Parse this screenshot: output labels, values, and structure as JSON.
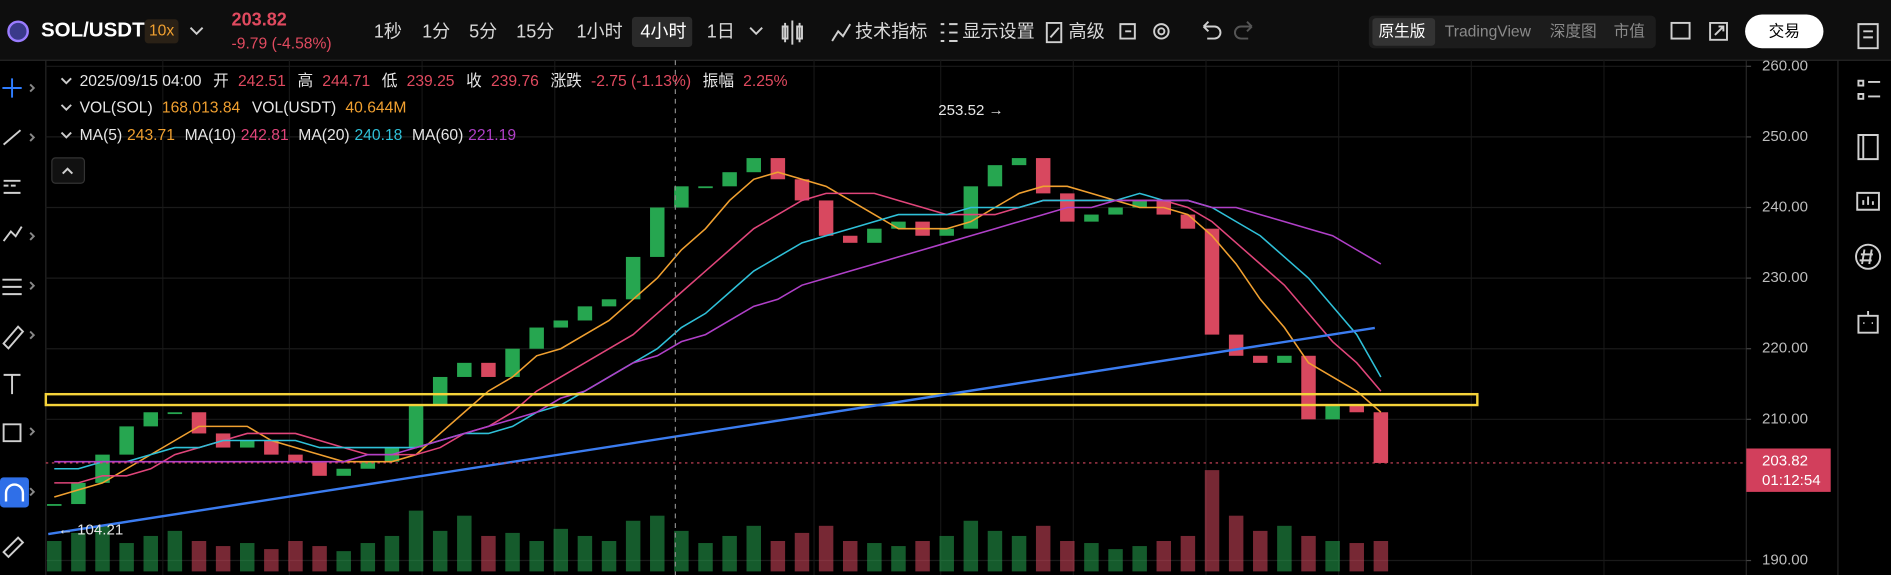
{
  "ticker": {
    "symbol": "SOL/USDT",
    "leverage": "10x",
    "price": "203.82",
    "change": "-9.79 (-4.58%)"
  },
  "intervals": [
    "1秒",
    "1分",
    "5分",
    "15分",
    "1小时",
    "4小时",
    "1日"
  ],
  "tools": {
    "indicators": "技术指标",
    "display": "显示设置",
    "advanced": "高级"
  },
  "views": [
    "原生版",
    "TradingView",
    "深度图",
    "市值"
  ],
  "trade_button": "交易",
  "info": {
    "datetime": "2025/09/15 04:00",
    "open_label": "开",
    "open": "242.51",
    "high_label": "高",
    "high": "244.71",
    "low_label": "低",
    "low": "239.25",
    "close_label": "收",
    "close": "239.76",
    "change_label": "涨跌",
    "change": "-2.75 (-1.13%)",
    "amplitude_label": "振幅",
    "amplitude": "2.25%",
    "vol_sol_label": "VOL(SOL)",
    "vol_sol": "168,013.84",
    "vol_usdt_label": "VOL(USDT)",
    "vol_usdt": "40.644M"
  },
  "chart_data": {
    "type": "candlestick",
    "values": [
      198,
      201,
      205,
      209,
      211,
      211,
      208,
      206,
      207,
      205,
      204,
      202,
      203,
      204,
      206,
      212,
      216,
      218,
      216,
      220,
      223,
      224,
      226,
      227,
      233,
      240,
      243,
      243,
      245,
      247,
      244,
      241,
      236,
      235,
      237,
      238,
      236,
      237,
      243,
      246,
      247,
      242,
      238,
      239,
      240,
      241,
      239,
      237,
      222,
      219,
      218,
      219,
      210,
      212,
      211,
      203.82
    ],
    "volumes": [
      30,
      38,
      45,
      28,
      35,
      40,
      30,
      25,
      28,
      22,
      30,
      25,
      20,
      28,
      35,
      60,
      40,
      55,
      35,
      38,
      30,
      42,
      35,
      30,
      50,
      55,
      40,
      28,
      35,
      45,
      30,
      38,
      45,
      30,
      28,
      25,
      30,
      35,
      50,
      40,
      35,
      45,
      30,
      28,
      22,
      25,
      30,
      35,
      100,
      55,
      40,
      45,
      35,
      30,
      28,
      30
    ],
    "up_color": "#26a650",
    "down_color": "#d8485f",
    "series": [
      {
        "name": "MA(5)",
        "legend_value": 243.71,
        "color": "#f0a030",
        "values": [
          199,
          200,
          201,
          203,
          205,
          207,
          209,
          209,
          209,
          207,
          206,
          205,
          204,
          204,
          204,
          205,
          208,
          211,
          214,
          216,
          219,
          220,
          222,
          224,
          227,
          230,
          234,
          237,
          241,
          244,
          245,
          244,
          243,
          241,
          239,
          237,
          237,
          237,
          238,
          240,
          242,
          243,
          243,
          242,
          241,
          240,
          240,
          239,
          236,
          232,
          227,
          223,
          218,
          216,
          214,
          211
        ]
      },
      {
        "name": "MA(10)",
        "legend_value": 242.81,
        "color": "#e0457a",
        "values": [
          201,
          201,
          202,
          202,
          203,
          205,
          206,
          207,
          208,
          208,
          208,
          207,
          206,
          205,
          205,
          205,
          206,
          208,
          209,
          211,
          214,
          216,
          218,
          220,
          222,
          225,
          228,
          231,
          234,
          237,
          239,
          241,
          242,
          242,
          242,
          241,
          240,
          239,
          239,
          239,
          240,
          241,
          241,
          241,
          241,
          241,
          241,
          240,
          238,
          235,
          232,
          229,
          225,
          221,
          218,
          214
        ]
      },
      {
        "name": "MA(20)",
        "legend_value": 240.18,
        "color": "#2fc0d8",
        "values": [
          203,
          203,
          204,
          204,
          205,
          206,
          206,
          207,
          207,
          207,
          207,
          206,
          206,
          206,
          206,
          206,
          207,
          208,
          208,
          209,
          211,
          212,
          214,
          216,
          218,
          220,
          223,
          225,
          228,
          231,
          233,
          235,
          236,
          237,
          238,
          239,
          239,
          239,
          240,
          240,
          240,
          241,
          241,
          241,
          241,
          242,
          241,
          241,
          240,
          238,
          236,
          233,
          230,
          226,
          222,
          216
        ]
      },
      {
        "name": "MA(60)",
        "legend_value": 221.19,
        "color": "#b040c8",
        "values": [
          204,
          204,
          204,
          204,
          204,
          204,
          204,
          204,
          204,
          204,
          204,
          204,
          204,
          205,
          205,
          206,
          207,
          208,
          209,
          210,
          211,
          213,
          214,
          216,
          218,
          219,
          221,
          222,
          224,
          226,
          227,
          229,
          230,
          231,
          232,
          233,
          234,
          235,
          236,
          237,
          238,
          239,
          240,
          240,
          241,
          241,
          241,
          241,
          240,
          240,
          239,
          238,
          237,
          236,
          234,
          232
        ]
      }
    ],
    "ylim": [
      190,
      260
    ],
    "yticks": [
      {
        "value": 260,
        "label": "260.00"
      },
      {
        "value": 250,
        "label": "250.00"
      },
      {
        "value": 240,
        "label": "240.00"
      },
      {
        "value": 230,
        "label": "230.00"
      },
      {
        "value": 220,
        "label": "220.00"
      },
      {
        "value": 210,
        "label": "210.00"
      },
      {
        "value": 190,
        "label": "190.00"
      }
    ],
    "grid": true,
    "high_marker": "253.52 →",
    "low_marker": "← 104.21",
    "countdown": "01:12:54"
  }
}
